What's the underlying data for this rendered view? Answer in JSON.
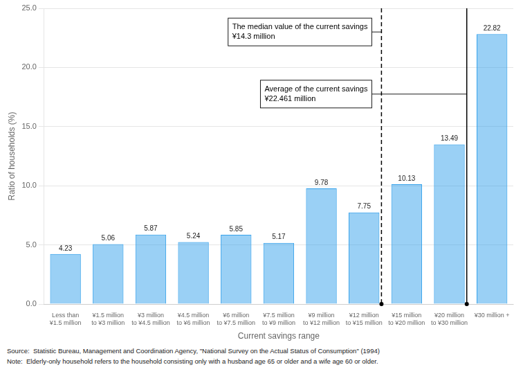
{
  "chart_data": {
    "type": "bar",
    "categories": [
      "Less than\n¥1.5 million",
      "¥1.5 million\nto ¥3 million",
      "¥3 million\nto ¥4.5 million",
      "¥4.5 million\nto ¥6 million",
      "¥6 million\nto ¥7.5 million",
      "¥7.5 million\nto ¥9 million",
      "¥9 million\nto ¥12 million",
      "¥12 million\nto ¥15 million",
      "¥15 million\nto ¥20 million",
      "¥20 million\nto ¥30 million",
      "¥30 million +"
    ],
    "values": [
      4.23,
      5.06,
      5.87,
      5.24,
      5.85,
      5.17,
      9.78,
      7.75,
      10.13,
      13.49,
      22.82
    ],
    "xlabel": "Current savings range",
    "ylabel": "Ratio of households (%)",
    "ylim": [
      0,
      25.0
    ],
    "yticks": [
      {
        "value": 0.0,
        "label": "0.0"
      },
      {
        "value": 5.0,
        "label": "5.0"
      },
      {
        "value": 10.0,
        "label": "10.0"
      },
      {
        "value": 15.0,
        "label": "15.0"
      },
      {
        "value": 20.0,
        "label": "20.0"
      },
      {
        "value": 25.0,
        "label": "25.0"
      }
    ],
    "grid": true,
    "data_labels": true,
    "annotations": [
      {
        "text": "The median value of the current savings\n¥14.3 million",
        "category": "¥12 million\nto ¥15 million",
        "line_style": "dashed"
      },
      {
        "text": "Average of the current savings\n¥22.461 million",
        "category": "¥20 million\nto ¥30 million",
        "line_style": "solid"
      }
    ],
    "footnotes": [
      "Source:  Statistic Bureau, Management and Coordination Agency, \"National Survey on the Actual Status of Consumption\" (1994)",
      "Note:  Elderly-only household refers to the household consisting only with a husband age 65 or older and a wife age 60 or older."
    ]
  }
}
